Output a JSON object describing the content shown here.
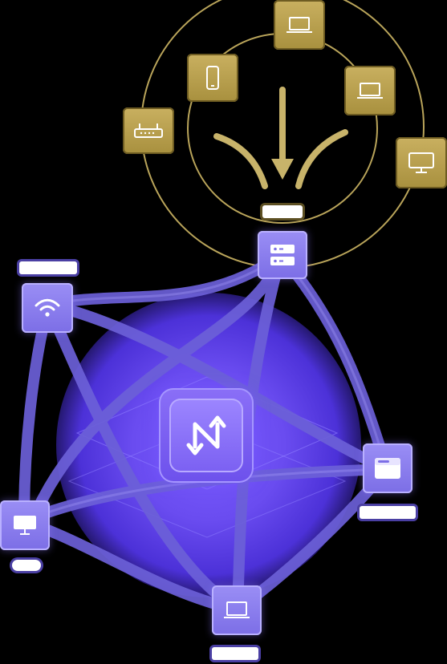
{
  "diagram": {
    "hub": {
      "icon": "transfer-arrows-icon"
    },
    "top_cluster": {
      "devices": [
        {
          "name": "router",
          "icon": "router-icon"
        },
        {
          "name": "phone",
          "icon": "phone-icon"
        },
        {
          "name": "laptop-top",
          "icon": "laptop-icon"
        },
        {
          "name": "laptop-right",
          "icon": "laptop-icon"
        },
        {
          "name": "monitor",
          "icon": "monitor-icon"
        }
      ],
      "label": ""
    },
    "network_nodes": [
      {
        "name": "server",
        "icon": "server-icon",
        "label": ""
      },
      {
        "name": "wifi",
        "icon": "wifi-icon",
        "label": ""
      },
      {
        "name": "browser",
        "icon": "browser-window-icon",
        "label": ""
      },
      {
        "name": "desktop",
        "icon": "desktop-icon",
        "label": ""
      },
      {
        "name": "laptop-bottom",
        "icon": "laptop-icon",
        "label": ""
      }
    ],
    "colors": {
      "gold": "#c9b060",
      "gold_line": "#b9a45a",
      "purple": "#8a7cf0",
      "purple_line": "#6c60d8",
      "glow": "#6a4cf0"
    }
  }
}
